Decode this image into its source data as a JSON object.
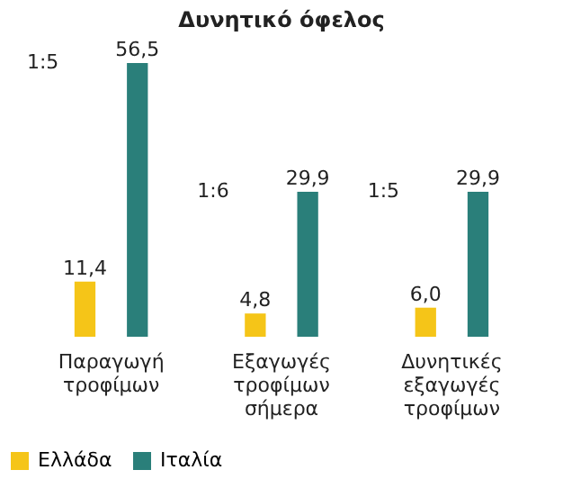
{
  "chart_data": {
    "type": "bar",
    "title": "Δυνητικό όφελος",
    "categories": [
      "Παραγωγή τροφίμων",
      "Εξαγωγές τροφίμων σήμερα",
      "Δυνητικές εξαγωγές τροφίμων"
    ],
    "series": [
      {
        "name": "Ελλάδα",
        "color": "#f5c518",
        "values": [
          11.4,
          4.8,
          6.0
        ],
        "value_labels": [
          "11,4",
          "4,8",
          "6,0"
        ]
      },
      {
        "name": "Ιταλία",
        "color": "#2a7f7a",
        "values": [
          56.5,
          29.9,
          29.9
        ],
        "value_labels": [
          "56,5",
          "29,9",
          "29,9"
        ]
      }
    ],
    "annotations": [
      "1:5",
      "1:6",
      "1:5"
    ],
    "legend": "bottom"
  }
}
